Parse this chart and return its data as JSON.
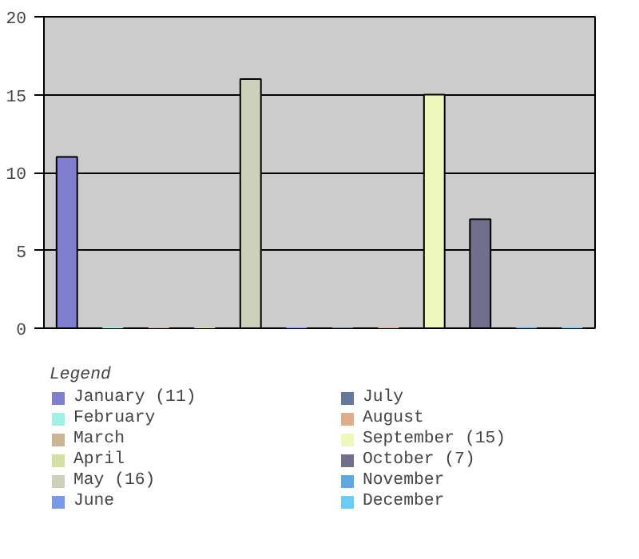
{
  "chart_data": {
    "type": "bar",
    "legend_title": "Legend",
    "categories": [
      null
    ],
    "series": [
      {
        "name": "January (11)",
        "color": "#7f7fcf",
        "values": [
          11
        ]
      },
      {
        "name": "February",
        "color": "#a0f0e8",
        "values": [
          0
        ]
      },
      {
        "name": "March",
        "color": "#cbb494",
        "values": [
          0
        ]
      },
      {
        "name": "April",
        "color": "#d2e0a0",
        "values": [
          0
        ]
      },
      {
        "name": "May (16)",
        "color": "#cdd1b9",
        "values": [
          16
        ]
      },
      {
        "name": "June",
        "color": "#7898e8",
        "values": [
          0
        ]
      },
      {
        "name": "July",
        "color": "#68789c",
        "values": [
          0
        ]
      },
      {
        "name": "August",
        "color": "#e0ac8c",
        "values": [
          0
        ]
      },
      {
        "name": "September (15)",
        "color": "#eef8bc",
        "values": [
          15
        ]
      },
      {
        "name": "October (7)",
        "color": "#70708c",
        "values": [
          7
        ]
      },
      {
        "name": "November",
        "color": "#60a8e0",
        "values": [
          0
        ]
      },
      {
        "name": "December",
        "color": "#6cccf8",
        "values": [
          0
        ]
      }
    ],
    "ylim": [
      0,
      20
    ],
    "yticks": [
      0,
      5,
      10,
      15,
      20
    ],
    "grid": "y",
    "legend": "bottom",
    "tick_labels": "y"
  }
}
